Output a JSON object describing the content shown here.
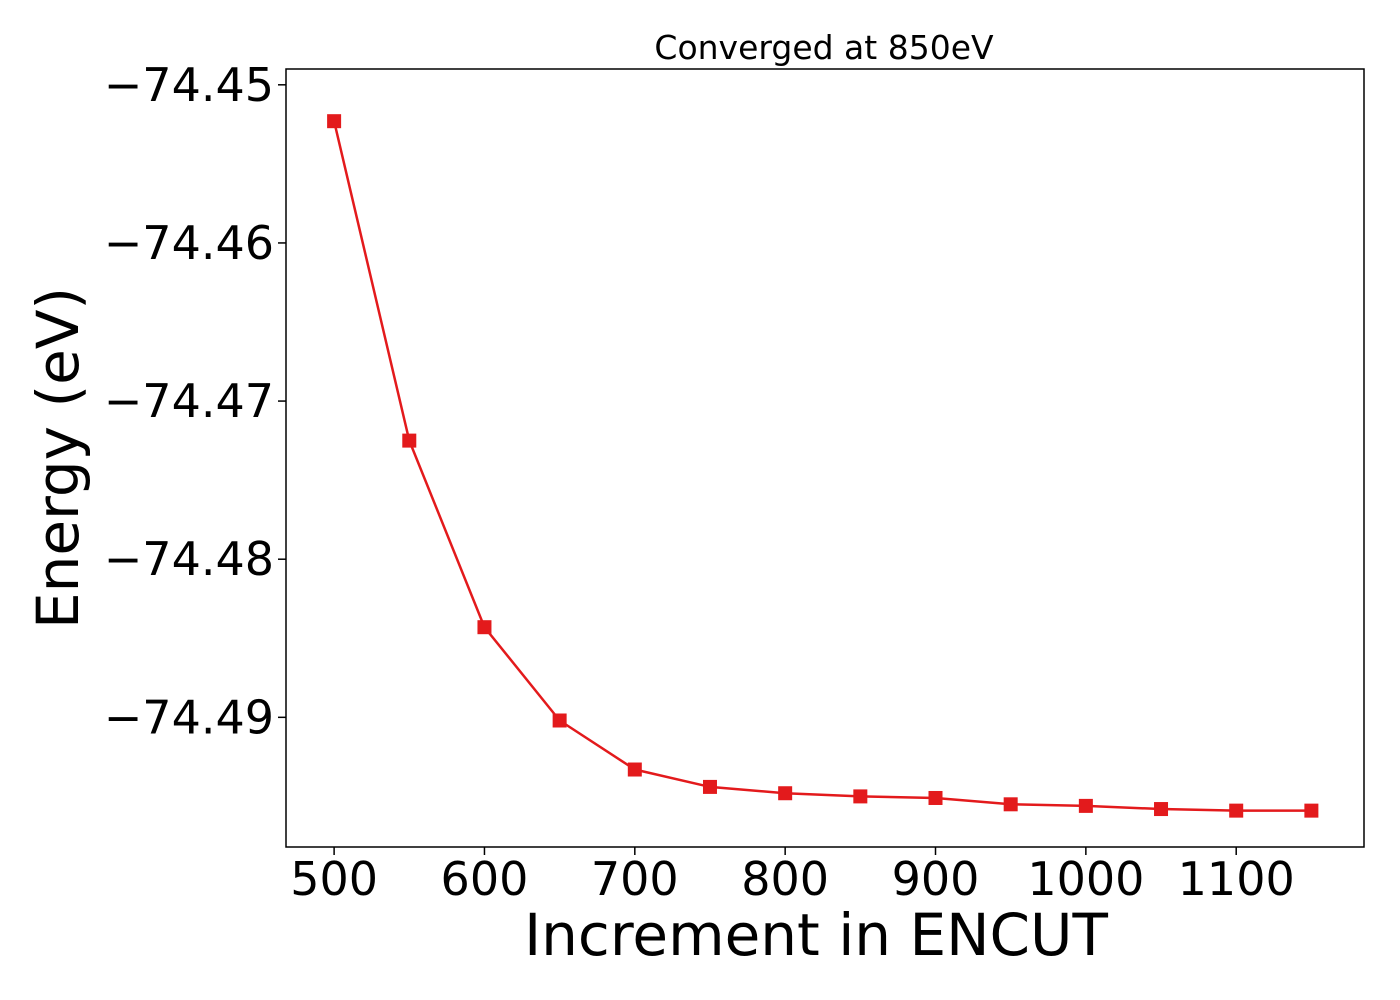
{
  "chart_data": {
    "type": "line",
    "title": "Converged at 850eV",
    "xlabel": "Increment in ENCUT",
    "ylabel": "Energy (eV)",
    "x": [
      500,
      550,
      600,
      650,
      700,
      750,
      800,
      850,
      900,
      950,
      1000,
      1050,
      1100,
      1150
    ],
    "series": [
      {
        "values": [
          -74.4523,
          -74.4725,
          -74.4843,
          -74.4902,
          -74.4933,
          -74.4944,
          -74.4948,
          -74.495,
          -74.4951,
          -74.4955,
          -74.4956,
          -74.4958,
          -74.4959,
          -74.4959
        ],
        "color": "#e31a1c",
        "marker": "square"
      }
    ],
    "xlim": [
      468,
      1185
    ],
    "ylim": [
      -74.4982,
      -74.449
    ],
    "xticks": [
      500,
      600,
      700,
      800,
      900,
      1000,
      1100
    ],
    "xtick_labels": [
      "500",
      "600",
      "700",
      "800",
      "900",
      "1000",
      "1100"
    ],
    "yticks": [
      -74.45,
      -74.46,
      -74.47,
      -74.48,
      -74.49
    ],
    "ytick_labels": [
      "−74.45",
      "−74.46",
      "−74.47",
      "−74.48",
      "−74.49"
    ],
    "grid": false,
    "legend": "none"
  }
}
